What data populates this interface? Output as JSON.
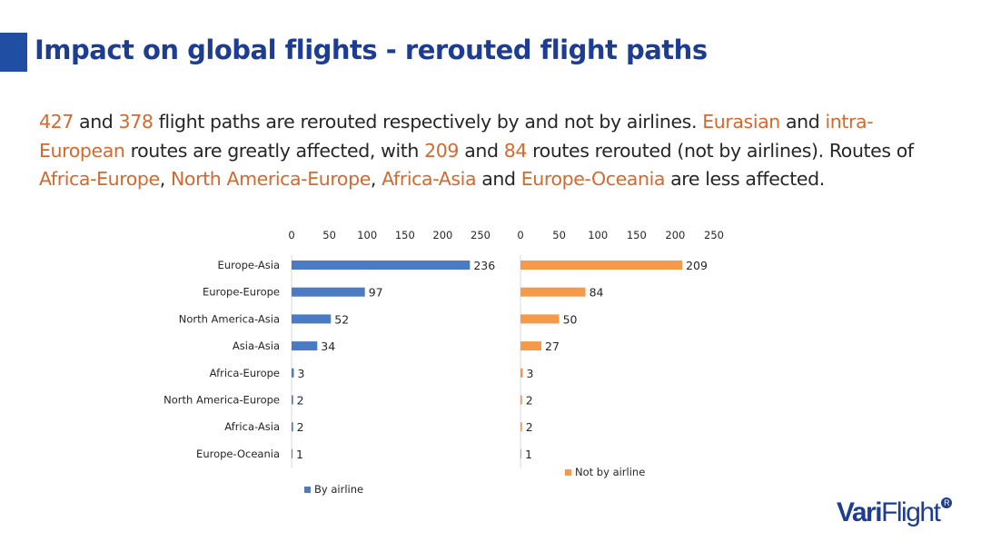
{
  "slide": {
    "title": "Impact on global flights - rerouted flight paths",
    "paragraph": [
      {
        "t": "427",
        "hl": true
      },
      {
        "t": " and ",
        "hl": false
      },
      {
        "t": "378",
        "hl": true
      },
      {
        "t": " flight paths are rerouted respectively by and not by airlines. ",
        "hl": false
      },
      {
        "t": "Eurasian",
        "hl": true
      },
      {
        "t": " and ",
        "hl": false
      },
      {
        "t": "intra-European",
        "hl": true
      },
      {
        "t": " routes are greatly affected, with ",
        "hl": false
      },
      {
        "t": "209",
        "hl": true
      },
      {
        "t": " and ",
        "hl": false
      },
      {
        "t": "84",
        "hl": true
      },
      {
        "t": " routes rerouted (not by airlines).  Routes of ",
        "hl": false
      },
      {
        "t": "Africa-Europe",
        "hl": true
      },
      {
        "t": ", ",
        "hl": false
      },
      {
        "t": "North America-Europe",
        "hl": true
      },
      {
        "t": ", ",
        "hl": false
      },
      {
        "t": "Africa-Asia",
        "hl": true
      },
      {
        "t": " and ",
        "hl": false
      },
      {
        "t": "Europe-Oceania",
        "hl": true
      },
      {
        "t": " are less affected.",
        "hl": false
      }
    ],
    "highlight_color": "#d4692e",
    "title_color": "#1c3d93"
  },
  "logo": {
    "text_bold": "Vari",
    "text_regular": "Flight",
    "mark": "R"
  },
  "chart_data": [
    {
      "type": "bar",
      "orientation": "horizontal",
      "categories": [
        "Europe-Asia",
        "Europe-Europe",
        "North America-Asia",
        "Asia-Asia",
        "Africa-Europe",
        "North America-Europe",
        "Africa-Asia",
        "Europe-Oceania"
      ],
      "series": [
        {
          "name": "By airline",
          "values": [
            236,
            97,
            52,
            34,
            3,
            2,
            2,
            1
          ],
          "color": "#4a7bc4"
        }
      ],
      "xlim": [
        0,
        250
      ],
      "xticks": [
        0,
        50,
        100,
        150,
        200,
        250
      ],
      "axis_position": "top",
      "legend": "bottom",
      "data_labels": true
    },
    {
      "type": "bar",
      "orientation": "horizontal",
      "categories": [
        "Europe-Asia",
        "Europe-Europe",
        "North America-Asia",
        "Asia-Asia",
        "Africa-Europe",
        "North America-Europe",
        "Africa-Asia",
        "Europe-Oceania"
      ],
      "series": [
        {
          "name": "Not by airline",
          "values": [
            209,
            84,
            50,
            27,
            3,
            2,
            2,
            1
          ],
          "color": "#f5994a"
        }
      ],
      "xlim": [
        0,
        250
      ],
      "xticks": [
        0,
        50,
        100,
        150,
        200,
        250
      ],
      "axis_position": "top",
      "legend": "bottom",
      "data_labels": true
    }
  ]
}
